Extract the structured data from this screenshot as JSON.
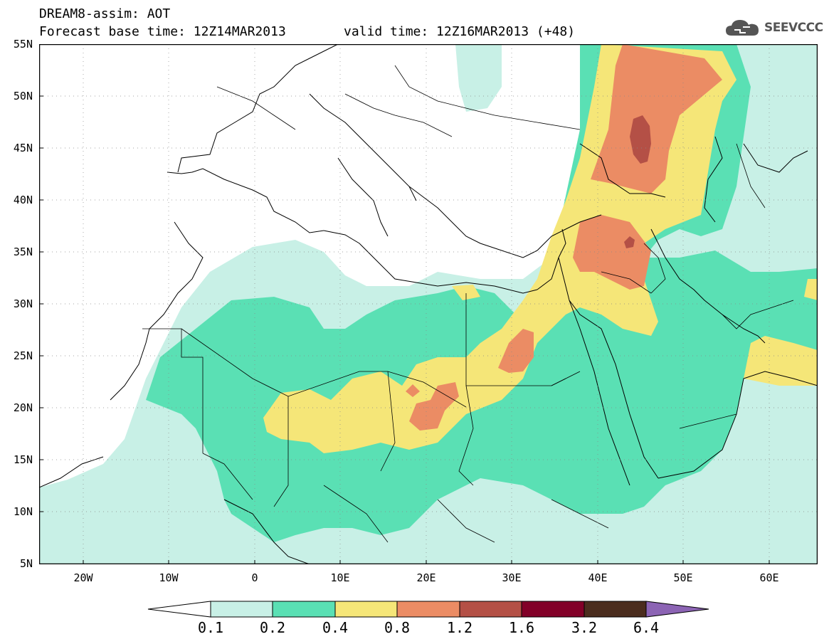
{
  "title_line1": "DREAM8-assim: AOT",
  "title_line2": "Forecast base time: 12Z14MAR2013",
  "title_line3": "valid time: 12Z16MAR2013 (+48)",
  "logo_text": "SEEVCCC",
  "logo_icon": "cloud-icon",
  "lat_labels": [
    "55N",
    "50N",
    "45N",
    "40N",
    "35N",
    "30N",
    "25N",
    "20N",
    "15N",
    "10N",
    "5N"
  ],
  "lon_labels": [
    "20W",
    "10W",
    "0",
    "10E",
    "20E",
    "30E",
    "40E",
    "50E",
    "60E"
  ],
  "colorbar": {
    "labels": [
      "0.1",
      "0.2",
      "0.4",
      "0.8",
      "1.2",
      "1.6",
      "3.2",
      "6.4"
    ],
    "colors": [
      "#ffffff",
      "#c8f0e6",
      "#5ae0b4",
      "#f5e678",
      "#eb8c64",
      "#b45046",
      "#820028",
      "#4b2d1e",
      "#8c64b4"
    ]
  }
}
